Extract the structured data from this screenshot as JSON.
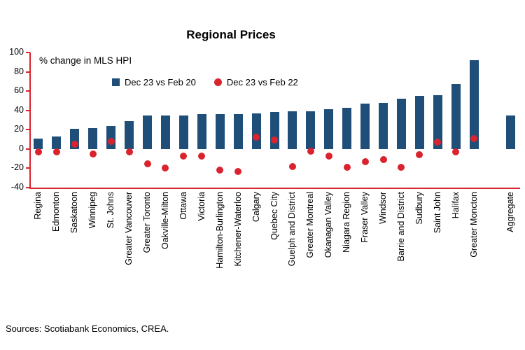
{
  "title": "Regional Prices",
  "axis_note": "% change in MLS HPI",
  "source": "Sources: Scotiabank Economics, CREA.",
  "colors": {
    "bar": "#1f4e79",
    "dot": "#d9232e",
    "axis": "#d9232e"
  },
  "legend": [
    {
      "label": "Dec 23 vs Feb 20",
      "marker": "square",
      "color": "#1f4e79"
    },
    {
      "label": "Dec 23 vs Feb 22",
      "marker": "circle",
      "color": "#d9232e"
    }
  ],
  "chart_data": {
    "type": "bar",
    "title": "Regional Prices",
    "ylabel": "% change in MLS HPI",
    "ylim": [
      -40,
      100
    ],
    "yticks": [
      -40,
      -20,
      0,
      20,
      40,
      60,
      80,
      100
    ],
    "grid": false,
    "legend_position": "top-center",
    "aggregate_gap": true,
    "categories": [
      "Regina",
      "Edmonton",
      "Saskatoon",
      "Winnipeg",
      "St. Johns",
      "Greater Vancouver",
      "Greater Toronto",
      "Oakville-Milton",
      "Ottawa",
      "Victoria",
      "Hamilton-Burlington",
      "Kitchener-Waterloo",
      "Calgary",
      "Quebec City",
      "Guelph and District",
      "Greater Montreal",
      "Okanagan Valley",
      "Niagara Region",
      "Fraser Valley",
      "Windsor",
      "Barrie and District",
      "Sudbury",
      "Saint John",
      "Halifax",
      "Greater Moncton",
      "Aggregate"
    ],
    "series": [
      {
        "name": "Dec 23 vs Feb 20",
        "type": "bar",
        "color": "#1f4e79",
        "values": [
          11,
          13,
          21,
          22,
          24,
          29,
          35,
          35,
          35,
          36,
          36,
          36,
          37,
          38,
          39,
          39,
          41,
          43,
          47,
          48,
          52,
          55,
          56,
          67,
          92,
          35
        ]
      },
      {
        "name": "Dec 23 vs Feb 22",
        "type": "scatter",
        "color": "#d9232e",
        "values": [
          -3,
          -3,
          5,
          -5,
          8,
          -3,
          -15,
          -20,
          -7,
          -7,
          -22,
          -23,
          12,
          9,
          -18,
          -2,
          -7,
          -19,
          -13,
          -11,
          -19,
          -6,
          7,
          -3,
          11,
          null
        ]
      }
    ]
  }
}
